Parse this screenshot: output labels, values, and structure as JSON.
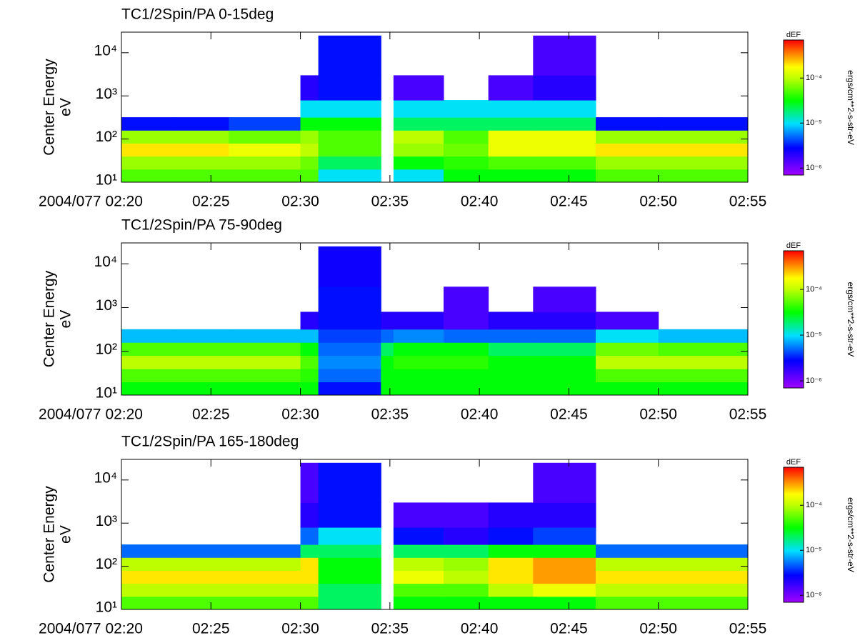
{
  "chart_data": [
    {
      "type": "heatmap",
      "title": "TC1/2Spin/PA 0-15deg",
      "ylabel": [
        "Center Energy",
        "eV"
      ],
      "xbins": [
        "02:20",
        "02:23",
        "02:26",
        "02:30",
        "02:31",
        "02:34:30",
        "02:35:12",
        "02:38",
        "02:40:30",
        "02:43",
        "02:46:30",
        "02:50",
        "02:55"
      ],
      "ybins": [
        10,
        20,
        40,
        80,
        160,
        320,
        800,
        3000,
        25000
      ],
      "values": [
        [
          5e-05,
          5e-05,
          5e-05,
          5e-05,
          1e-05,
          null,
          1e-05,
          3e-05,
          3e-05,
          3e-05,
          5e-05,
          5e-05
        ],
        [
          8e-05,
          8e-05,
          8e-05,
          6e-05,
          2e-05,
          null,
          3e-05,
          4e-05,
          5e-05,
          5e-05,
          8e-05,
          8e-05
        ],
        [
          0.0002,
          0.0002,
          0.00015,
          0.0001,
          5e-05,
          null,
          8e-05,
          6e-05,
          0.00015,
          0.00015,
          0.0002,
          0.0002
        ],
        [
          8e-05,
          8e-05,
          6e-05,
          8e-05,
          5e-05,
          null,
          0.0001,
          5e-05,
          0.00015,
          0.00015,
          8e-05,
          8e-05
        ],
        [
          3e-06,
          3e-06,
          4e-06,
          3e-05,
          3e-05,
          null,
          2e-05,
          2e-05,
          2e-05,
          2e-05,
          3e-06,
          3e-06
        ],
        [
          null,
          null,
          null,
          1e-05,
          1e-05,
          null,
          1e-05,
          1e-05,
          1e-05,
          1e-05,
          null,
          null
        ],
        [
          null,
          null,
          null,
          2e-06,
          3e-06,
          null,
          1.5e-06,
          null,
          1.5e-06,
          2e-06,
          null,
          null
        ],
        [
          null,
          null,
          null,
          null,
          3e-06,
          null,
          null,
          null,
          null,
          1.5e-06,
          null,
          null
        ]
      ],
      "xlim": [
        "02:20",
        "02:55"
      ],
      "xticks": [
        {
          "value": "02:20",
          "label": "2004/077 02:20"
        },
        "02:25",
        "02:30",
        "02:35",
        "02:40",
        "02:45",
        "02:50",
        "02:55"
      ],
      "ylim": [
        10,
        30000
      ],
      "log_y": true,
      "yticks": [
        {
          "value": 10,
          "label": "10¹"
        },
        {
          "value": 100,
          "label": "10²"
        },
        {
          "value": 1000,
          "label": "10³"
        },
        {
          "value": 10000,
          "label": "10⁴"
        }
      ],
      "colorbar": {
        "title": "dEF",
        "label": "ergs/cm**2-s-str-eV",
        "clim": [
          7e-07,
          0.0007
        ],
        "log": true,
        "ticks": [
          {
            "value": 1e-06,
            "label": "10⁻⁶"
          },
          {
            "value": 1e-05,
            "label": "10⁻⁵"
          },
          {
            "value": 0.0001,
            "label": "10⁻⁴"
          }
        ]
      }
    },
    {
      "type": "heatmap",
      "title": "TC1/2Spin/PA 75-90deg",
      "ylabel": [
        "Center Energy",
        "eV"
      ],
      "xbins": [
        "02:20",
        "02:23",
        "02:26",
        "02:30",
        "02:31",
        "02:34:30",
        "02:35:12",
        "02:38",
        "02:40:30",
        "02:43",
        "02:46:30",
        "02:50",
        "02:55"
      ],
      "ybins": [
        10,
        20,
        40,
        80,
        160,
        320,
        800,
        3000,
        25000
      ],
      "values": [
        [
          3e-05,
          3e-05,
          3e-05,
          3e-05,
          3e-06,
          3e-05,
          3e-05,
          3e-05,
          3e-05,
          3e-05,
          3e-05,
          3e-05
        ],
        [
          5e-05,
          5e-05,
          5e-05,
          4e-05,
          5e-06,
          3e-05,
          3e-05,
          3e-05,
          3e-05,
          3e-05,
          5e-05,
          5e-05
        ],
        [
          0.0001,
          0.0001,
          0.0001,
          5e-05,
          6e-06,
          3e-05,
          4e-05,
          4e-05,
          3e-05,
          3e-05,
          0.0001,
          0.0001
        ],
        [
          5e-05,
          5e-05,
          5e-05,
          3e-05,
          5e-06,
          2e-05,
          3e-05,
          3e-05,
          2e-05,
          2e-05,
          6e-05,
          5e-05
        ],
        [
          8e-06,
          8e-06,
          8e-06,
          8e-06,
          4e-06,
          5e-06,
          6e-06,
          5e-06,
          5e-06,
          5e-06,
          1e-05,
          8e-06
        ],
        [
          null,
          null,
          null,
          2e-06,
          3e-06,
          2e-06,
          2e-06,
          1.5e-06,
          2e-06,
          2e-06,
          1.5e-06,
          null
        ],
        [
          null,
          null,
          null,
          null,
          3e-06,
          null,
          null,
          1.5e-06,
          null,
          1.5e-06,
          null,
          null
        ],
        [
          null,
          null,
          null,
          null,
          2.5e-06,
          null,
          null,
          null,
          null,
          null,
          null,
          null
        ]
      ],
      "xlim": [
        "02:20",
        "02:55"
      ],
      "xticks": [
        {
          "value": "02:20",
          "label": "2004/077 02:20"
        },
        "02:25",
        "02:30",
        "02:35",
        "02:40",
        "02:45",
        "02:50",
        "02:55"
      ],
      "ylim": [
        10,
        30000
      ],
      "log_y": true,
      "yticks": [
        {
          "value": 10,
          "label": "10¹"
        },
        {
          "value": 100,
          "label": "10²"
        },
        {
          "value": 1000,
          "label": "10³"
        },
        {
          "value": 10000,
          "label": "10⁴"
        }
      ],
      "colorbar": {
        "title": "dEF",
        "label": "ergs/cm**2-s-str-eV",
        "clim": [
          7e-07,
          0.0007
        ],
        "log": true,
        "ticks": [
          {
            "value": 1e-06,
            "label": "10⁻⁶"
          },
          {
            "value": 1e-05,
            "label": "10⁻⁵"
          },
          {
            "value": 0.0001,
            "label": "10⁻⁴"
          }
        ]
      }
    },
    {
      "type": "heatmap",
      "title": "TC1/2Spin/PA 165-180deg",
      "ylabel": [
        "Center Energy",
        "eV"
      ],
      "xbins": [
        "02:20",
        "02:23",
        "02:26",
        "02:30",
        "02:31",
        "02:34:30",
        "02:35:12",
        "02:38",
        "02:40:30",
        "02:43",
        "02:46:30",
        "02:50",
        "02:55"
      ],
      "ybins": [
        10,
        20,
        40,
        80,
        160,
        320,
        800,
        3000,
        25000
      ],
      "values": [
        [
          5e-05,
          5e-05,
          5e-05,
          5e-05,
          2e-05,
          null,
          3e-05,
          3e-05,
          3e-05,
          3e-05,
          5e-05,
          5e-05
        ],
        [
          0.0001,
          0.0001,
          0.0001,
          0.0001,
          2e-05,
          null,
          5e-05,
          5e-05,
          0.0001,
          0.00015,
          0.0001,
          0.0001
        ],
        [
          0.0002,
          0.0002,
          0.0002,
          0.0002,
          3e-05,
          null,
          0.00015,
          0.0001,
          0.0002,
          0.0003,
          0.0002,
          0.0002
        ],
        [
          0.0001,
          0.0001,
          0.0001,
          0.0002,
          3e-05,
          null,
          0.0001,
          8e-05,
          0.0002,
          0.0003,
          0.0001,
          0.0001
        ],
        [
          5e-06,
          5e-06,
          5e-06,
          2e-05,
          2e-05,
          null,
          2e-05,
          2e-05,
          3e-05,
          3e-05,
          5e-06,
          5e-06
        ],
        [
          null,
          null,
          null,
          5e-06,
          1e-05,
          null,
          3e-06,
          2e-06,
          3e-06,
          4e-06,
          null,
          null
        ],
        [
          null,
          null,
          null,
          2e-06,
          3e-06,
          null,
          1.5e-06,
          1.5e-06,
          2e-06,
          2e-06,
          null,
          null
        ],
        [
          null,
          null,
          null,
          1.5e-06,
          3e-06,
          null,
          null,
          null,
          null,
          1.5e-06,
          null,
          null
        ]
      ],
      "xlim": [
        "02:20",
        "02:55"
      ],
      "xticks": [
        {
          "value": "02:20",
          "label": "2004/077 02:20"
        },
        "02:25",
        "02:30",
        "02:35",
        "02:40",
        "02:45",
        "02:50",
        "02:55"
      ],
      "ylim": [
        10,
        30000
      ],
      "log_y": true,
      "yticks": [
        {
          "value": 10,
          "label": "10¹"
        },
        {
          "value": 100,
          "label": "10²"
        },
        {
          "value": 1000,
          "label": "10³"
        },
        {
          "value": 10000,
          "label": "10⁴"
        }
      ],
      "colorbar": {
        "title": "dEF",
        "label": "ergs/cm**2-s-str-eV",
        "clim": [
          7e-07,
          0.0007
        ],
        "log": true,
        "ticks": [
          {
            "value": 1e-06,
            "label": "10⁻⁶"
          },
          {
            "value": 1e-05,
            "label": "10⁻⁵"
          },
          {
            "value": 0.0001,
            "label": "10⁻⁴"
          }
        ]
      }
    }
  ]
}
